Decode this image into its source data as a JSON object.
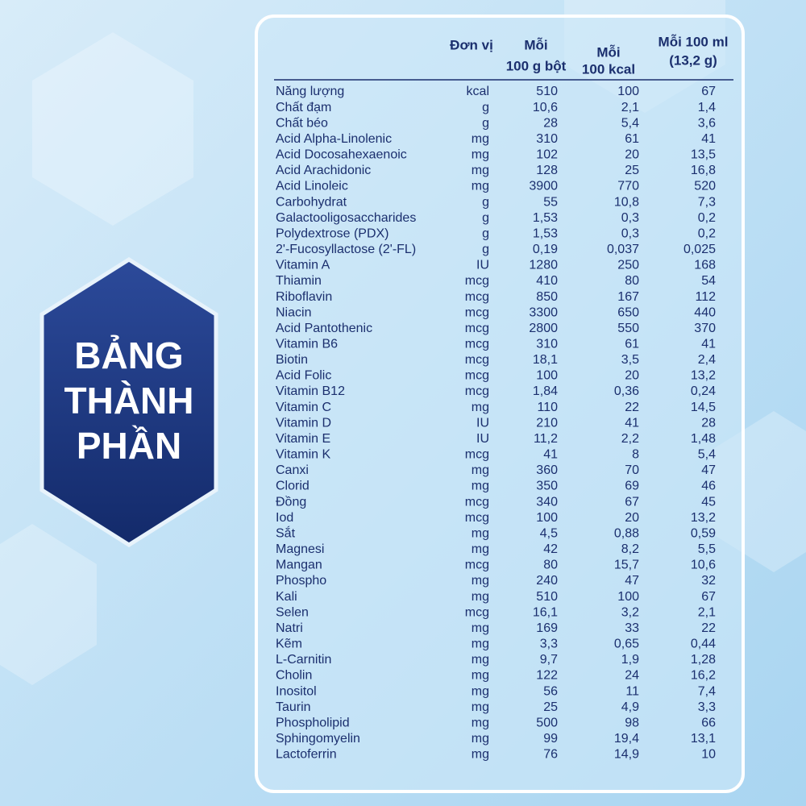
{
  "badge": {
    "lines": [
      "BẢNG",
      "THÀNH",
      "PHẦN"
    ]
  },
  "table": {
    "header": [
      [
        "Đơn vị"
      ],
      [
        "Mỗi",
        "100 g bột"
      ],
      [
        "Mỗi",
        "100 kcal"
      ],
      [
        "Mỗi 100 ml",
        "(13,2 g)"
      ]
    ],
    "rows": [
      [
        "Năng lượng",
        "kcal",
        "510",
        "100",
        "67"
      ],
      [
        "Chất đạm",
        "g",
        "10,6",
        "2,1",
        "1,4"
      ],
      [
        "Chất béo",
        "g",
        "28",
        "5,4",
        "3,6"
      ],
      [
        "Acid Alpha-Linolenic",
        "mg",
        "310",
        "61",
        "41"
      ],
      [
        "Acid Docosahexaenoic",
        "mg",
        "102",
        "20",
        "13,5"
      ],
      [
        "Acid Arachidonic",
        "mg",
        "128",
        "25",
        "16,8"
      ],
      [
        "Acid Linoleic",
        "mg",
        "3900",
        "770",
        "520"
      ],
      [
        "Carbohydrat",
        "g",
        "55",
        "10,8",
        "7,3"
      ],
      [
        "Galactooligosaccharides",
        "g",
        "1,53",
        "0,3",
        "0,2"
      ],
      [
        "Polydextrose (PDX)",
        "g",
        "1,53",
        "0,3",
        "0,2"
      ],
      [
        "2'-Fucosyllactose (2'-FL)",
        "g",
        "0,19",
        "0,037",
        "0,025"
      ],
      [
        "Vitamin A",
        "IU",
        "1280",
        "250",
        "168"
      ],
      [
        "Thiamin",
        "mcg",
        "410",
        "80",
        "54"
      ],
      [
        "Riboflavin",
        "mcg",
        "850",
        "167",
        "112"
      ],
      [
        "Niacin",
        "mcg",
        "3300",
        "650",
        "440"
      ],
      [
        "Acid Pantothenic",
        "mcg",
        "2800",
        "550",
        "370"
      ],
      [
        "Vitamin B6",
        "mcg",
        "310",
        "61",
        "41"
      ],
      [
        "Biotin",
        "mcg",
        "18,1",
        "3,5",
        "2,4"
      ],
      [
        "Acid Folic",
        "mcg",
        "100",
        "20",
        "13,2"
      ],
      [
        "Vitamin B12",
        "mcg",
        "1,84",
        "0,36",
        "0,24"
      ],
      [
        "Vitamin C",
        "mg",
        "110",
        "22",
        "14,5"
      ],
      [
        "Vitamin D",
        "IU",
        "210",
        "41",
        "28"
      ],
      [
        "Vitamin E",
        "IU",
        "11,2",
        "2,2",
        "1,48"
      ],
      [
        "Vitamin K",
        "mcg",
        "41",
        "8",
        "5,4"
      ],
      [
        "Canxi",
        "mg",
        "360",
        "70",
        "47"
      ],
      [
        "Clorid",
        "mg",
        "350",
        "69",
        "46"
      ],
      [
        "Đồng",
        "mcg",
        "340",
        "67",
        "45"
      ],
      [
        "Iod",
        "mcg",
        "100",
        "20",
        "13,2"
      ],
      [
        "Sắt",
        "mg",
        "4,5",
        "0,88",
        "0,59"
      ],
      [
        "Magnesi",
        "mg",
        "42",
        "8,2",
        "5,5"
      ],
      [
        "Mangan",
        "mcg",
        "80",
        "15,7",
        "10,6"
      ],
      [
        "Phospho",
        "mg",
        "240",
        "47",
        "32"
      ],
      [
        "Kali",
        "mg",
        "510",
        "100",
        "67"
      ],
      [
        "Selen",
        "mcg",
        "16,1",
        "3,2",
        "2,1"
      ],
      [
        "Natri",
        "mg",
        "169",
        "33",
        "22"
      ],
      [
        "Kẽm",
        "mg",
        "3,3",
        "0,65",
        "0,44"
      ],
      [
        "L-Carnitin",
        "mg",
        "9,7",
        "1,9",
        "1,28"
      ],
      [
        "Cholin",
        "mg",
        "122",
        "24",
        "16,2"
      ],
      [
        "Inositol",
        "mg",
        "56",
        "11",
        "7,4"
      ],
      [
        "Taurin",
        "mg",
        "25",
        "4,9",
        "3,3"
      ],
      [
        "Phospholipid",
        "mg",
        "500",
        "98",
        "66"
      ],
      [
        "Sphingomyelin",
        "mg",
        "99",
        "19,4",
        "13,1"
      ],
      [
        "Lactoferrin",
        "mg",
        "76",
        "14,9",
        "10"
      ]
    ]
  }
}
